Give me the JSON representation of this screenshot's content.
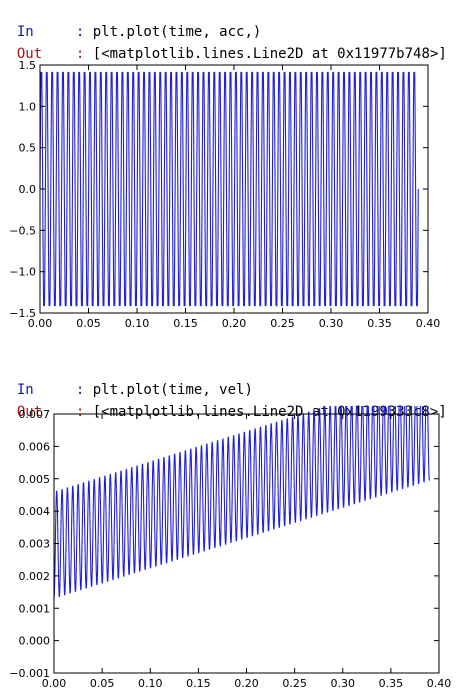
{
  "cells": [
    {
      "in_prompt": "In",
      "in_code": "plt.plot(time, acc,)",
      "out_prompt": "Out",
      "out_text": "[<matplotlib.lines.Line2D at 0x11977b748>]",
      "colon": ":"
    },
    {
      "in_prompt": "In",
      "in_code": "plt.plot(time, vel)",
      "out_prompt": "Out",
      "out_text": "[<matplotlib.lines.Line2D at 0x1199333c8>]",
      "colon": ":"
    }
  ],
  "chart_data": [
    {
      "type": "line",
      "series_color": "#2020d8",
      "xlim": [
        0.0,
        0.4
      ],
      "ylim": [
        -1.5,
        1.5
      ],
      "x_ticks": [
        "0.00",
        "0.05",
        "0.10",
        "0.15",
        "0.20",
        "0.25",
        "0.30",
        "0.35",
        "0.40"
      ],
      "y_ticks": [
        "1.5",
        "1.0",
        "0.5",
        "0.0",
        "−0.5",
        "−1.0",
        "−1.5"
      ],
      "x_tick_values": [
        0.0,
        0.05,
        0.1,
        0.15,
        0.2,
        0.25,
        0.3,
        0.35,
        0.4
      ],
      "y_tick_values": [
        1.5,
        1.0,
        0.5,
        0.0,
        -0.5,
        -1.0,
        -1.5
      ],
      "signal": {
        "kind": "square-ish sine",
        "amplitude": 1.41,
        "offset": 0.0,
        "drift": 0.0,
        "cycles": 70,
        "x_start": 0.0,
        "x_end": 0.39
      }
    },
    {
      "type": "line",
      "series_color": "#2020d8",
      "xlim": [
        0.0,
        0.4
      ],
      "ylim": [
        -0.001,
        0.007
      ],
      "x_ticks": [
        "0.00",
        "0.05",
        "0.10",
        "0.15",
        "0.20",
        "0.25",
        "0.30",
        "0.35",
        "0.40"
      ],
      "y_ticks": [
        "0.007",
        "0.006",
        "0.005",
        "0.004",
        "0.003",
        "0.002",
        "0.001",
        "0.000",
        "−0.001"
      ],
      "x_tick_values": [
        0.0,
        0.05,
        0.1,
        0.15,
        0.2,
        0.25,
        0.3,
        0.35,
        0.4
      ],
      "y_tick_values": [
        0.007,
        0.006,
        0.005,
        0.004,
        0.003,
        0.002,
        0.001,
        0.0,
        -0.001
      ],
      "signal": {
        "kind": "sine with drift",
        "amplitude": 0.00165,
        "offset": 0.0013,
        "drift": 0.0081,
        "cycles": 70,
        "x_start": 0.0,
        "x_end": 0.39
      }
    }
  ]
}
